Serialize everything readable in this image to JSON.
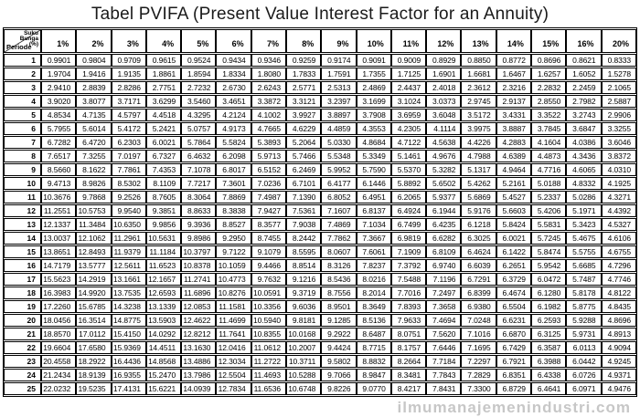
{
  "title": "Tabel PVIFA (Present Value Interest Factor for an Annuity)",
  "watermark": "ilmumanajemenindustri.com",
  "colors": {
    "border": "#000000",
    "text": "#000000",
    "watermark": "#c7c7c7",
    "background": "#ffffff"
  },
  "table": {
    "corner": {
      "top_label": "Suku\nBunga\n(%)",
      "bottom_label": "Periode"
    },
    "columns": [
      "1%",
      "2%",
      "3%",
      "4%",
      "5%",
      "6%",
      "7%",
      "8%",
      "9%",
      "10%",
      "11%",
      "12%",
      "13%",
      "14%",
      "15%",
      "16%",
      "20%"
    ],
    "rows": [
      {
        "period": "1",
        "values": [
          "0.9901",
          "0.9804",
          "0.9709",
          "0.9615",
          "0.9524",
          "0.9434",
          "0.9346",
          "0.9259",
          "0.9174",
          "0.9091",
          "0.9009",
          "0.8929",
          "0.8850",
          "0.8772",
          "0.8696",
          "0.8621",
          "0.8333"
        ]
      },
      {
        "period": "2",
        "values": [
          "1.9704",
          "1.9416",
          "1.9135",
          "1.8861",
          "1.8594",
          "1.8334",
          "1.8080",
          "1.7833",
          "1.7591",
          "1.7355",
          "1.7125",
          "1.6901",
          "1.6681",
          "1.6467",
          "1.6257",
          "1.6052",
          "1.5278"
        ]
      },
      {
        "period": "3",
        "values": [
          "2.9410",
          "2.8839",
          "2.8286",
          "2.7751",
          "2.7232",
          "2.6730",
          "2.6243",
          "2.5771",
          "2.5313",
          "2.4869",
          "2.4437",
          "2.4018",
          "2.3612",
          "2.3216",
          "2.2832",
          "2.2459",
          "2.1065"
        ]
      },
      {
        "period": "4",
        "values": [
          "3.9020",
          "3.8077",
          "3.7171",
          "3.6299",
          "3.5460",
          "3.4651",
          "3.3872",
          "3.3121",
          "3.2397",
          "3.1699",
          "3.1024",
          "3.0373",
          "2.9745",
          "2.9137",
          "2.8550",
          "2.7982",
          "2.5887"
        ]
      },
      {
        "period": "5",
        "values": [
          "4.8534",
          "4.7135",
          "4.5797",
          "4.4518",
          "4.3295",
          "4.2124",
          "4.1002",
          "3.9927",
          "3.8897",
          "3.7908",
          "3.6959",
          "3.6048",
          "3.5172",
          "3.4331",
          "3.3522",
          "3.2743",
          "2.9906"
        ]
      },
      {
        "period": "6",
        "values": [
          "5.7955",
          "5.6014",
          "5.4172",
          "5.2421",
          "5.0757",
          "4.9173",
          "4.7665",
          "4.6229",
          "4.4859",
          "4.3553",
          "4.2305",
          "4.1114",
          "3.9975",
          "3.8887",
          "3.7845",
          "3.6847",
          "3.3255"
        ]
      },
      {
        "period": "7",
        "values": [
          "6.7282",
          "6.4720",
          "6.2303",
          "6.0021",
          "5.7864",
          "5.5824",
          "5.3893",
          "5.2064",
          "5.0330",
          "4.8684",
          "4.7122",
          "4.5638",
          "4.4226",
          "4.2883",
          "4.1604",
          "4.0386",
          "3.6046"
        ]
      },
      {
        "period": "8",
        "values": [
          "7.6517",
          "7.3255",
          "7.0197",
          "6.7327",
          "6.4632",
          "6.2098",
          "5.9713",
          "5.7466",
          "5.5348",
          "5.3349",
          "5.1461",
          "4.9676",
          "4.7988",
          "4.6389",
          "4.4873",
          "4.3436",
          "3.8372"
        ]
      },
      {
        "period": "9",
        "values": [
          "8.5660",
          "8.1622",
          "7.7861",
          "7.4353",
          "7.1078",
          "6.8017",
          "6.5152",
          "6.2469",
          "5.9952",
          "5.7590",
          "5.5370",
          "5.3282",
          "5.1317",
          "4.9464",
          "4.7716",
          "4.6065",
          "4.0310"
        ]
      },
      {
        "period": "10",
        "values": [
          "9.4713",
          "8.9826",
          "8.5302",
          "8.1109",
          "7.7217",
          "7.3601",
          "7.0236",
          "6.7101",
          "6.4177",
          "6.1446",
          "5.8892",
          "5.6502",
          "5.4262",
          "5.2161",
          "5.0188",
          "4.8332",
          "4.1925"
        ]
      },
      {
        "period": "11",
        "values": [
          "10.3676",
          "9.7868",
          "9.2526",
          "8.7605",
          "8.3064",
          "7.8869",
          "7.4987",
          "7.1390",
          "6.8052",
          "6.4951",
          "6.2065",
          "5.9377",
          "5.6869",
          "5.4527",
          "5.2337",
          "5.0286",
          "4.3271"
        ]
      },
      {
        "period": "12",
        "values": [
          "11.2551",
          "10.5753",
          "9.9540",
          "9.3851",
          "8.8633",
          "8.3838",
          "7.9427",
          "7.5361",
          "7.1607",
          "6.8137",
          "6.4924",
          "6.1944",
          "5.9176",
          "5.6603",
          "5.4206",
          "5.1971",
          "4.4392"
        ]
      },
      {
        "period": "13",
        "values": [
          "12.1337",
          "11.3484",
          "10.6350",
          "9.9856",
          "9.3936",
          "8.8527",
          "8.3577",
          "7.9038",
          "7.4869",
          "7.1034",
          "6.7499",
          "6.4235",
          "6.1218",
          "5.8424",
          "5.5831",
          "5.3423",
          "4.5327"
        ]
      },
      {
        "period": "14",
        "values": [
          "13.0037",
          "12.1062",
          "11.2961",
          "10.5631",
          "9.8986",
          "9.2950",
          "8.7455",
          "8.2442",
          "7.7862",
          "7.3667",
          "6.9819",
          "6.6282",
          "6.3025",
          "6.0021",
          "5.7245",
          "5.4675",
          "4.6106"
        ]
      },
      {
        "period": "15",
        "values": [
          "13.8651",
          "12.8493",
          "11.9379",
          "11.1184",
          "10.3797",
          "9.7122",
          "9.1079",
          "8.5595",
          "8.0607",
          "7.6061",
          "7.1909",
          "6.8109",
          "6.4624",
          "6.1422",
          "5.8474",
          "5.5755",
          "4.6755"
        ]
      },
      {
        "period": "16",
        "values": [
          "14.7179",
          "13.5777",
          "12.5611",
          "11.6523",
          "10.8378",
          "10.1059",
          "9.4466",
          "8.8514",
          "8.3126",
          "7.8237",
          "7.3792",
          "6.9740",
          "6.6039",
          "6.2651",
          "5.9542",
          "5.6685",
          "4.7296"
        ]
      },
      {
        "period": "17",
        "values": [
          "15.5623",
          "14.2919",
          "13.1661",
          "12.1657",
          "11.2741",
          "10.4773",
          "9.7632",
          "9.1216",
          "8.5436",
          "8.0216",
          "7.5488",
          "7.1196",
          "6.7291",
          "6.3729",
          "6.0472",
          "5.7487",
          "4.7746"
        ]
      },
      {
        "period": "18",
        "values": [
          "16.3983",
          "14.9920",
          "13.7535",
          "12.6593",
          "11.6896",
          "10.8276",
          "10.0591",
          "9.3719",
          "8.7556",
          "8.2014",
          "7.7016",
          "7.2497",
          "6.8399",
          "6.4674",
          "6.1280",
          "5.8178",
          "4.8122"
        ]
      },
      {
        "period": "19",
        "values": [
          "17.2260",
          "15.6785",
          "14.3238",
          "13.1339",
          "12.0853",
          "11.1581",
          "10.3356",
          "9.6036",
          "8.9501",
          "8.3649",
          "7.8393",
          "7.3658",
          "6.9380",
          "6.5504",
          "6.1982",
          "5.8775",
          "4.8435"
        ]
      },
      {
        "period": "20",
        "values": [
          "18.0456",
          "16.3514",
          "14.8775",
          "13.5903",
          "12.4622",
          "11.4699",
          "10.5940",
          "9.8181",
          "9.1285",
          "8.5136",
          "7.9633",
          "7.4694",
          "7.0248",
          "6.6231",
          "6.2593",
          "5.9288",
          "4.8696"
        ]
      },
      {
        "period": "21",
        "values": [
          "18.8570",
          "17.0112",
          "15.4150",
          "14.0292",
          "12.8212",
          "11.7641",
          "10.8355",
          "10.0168",
          "9.2922",
          "8.6487",
          "8.0751",
          "7.5620",
          "7.1016",
          "6.6870",
          "6.3125",
          "5.9731",
          "4.8913"
        ]
      },
      {
        "period": "22",
        "values": [
          "19.6604",
          "17.6580",
          "15.9369",
          "14.4511",
          "13.1630",
          "12.0416",
          "11.0612",
          "10.2007",
          "9.4424",
          "8.7715",
          "8.1757",
          "7.6446",
          "7.1695",
          "6.7429",
          "6.3587",
          "6.0113",
          "4.9094"
        ]
      },
      {
        "period": "23",
        "values": [
          "20.4558",
          "18.2922",
          "16.4436",
          "14.8568",
          "13.4886",
          "12.3034",
          "11.2722",
          "10.3711",
          "9.5802",
          "8.8832",
          "8.2664",
          "7.7184",
          "7.2297",
          "6.7921",
          "6.3988",
          "6.0442",
          "4.9245"
        ]
      },
      {
        "period": "24",
        "values": [
          "21.2434",
          "18.9139",
          "16.9355",
          "15.2470",
          "13.7986",
          "12.5504",
          "11.4693",
          "10.5288",
          "9.7066",
          "8.9847",
          "8.3481",
          "7.7843",
          "7.2829",
          "6.8351",
          "6.4338",
          "6.0726",
          "4.9371"
        ]
      },
      {
        "period": "25",
        "values": [
          "22.0232",
          "19.5235",
          "17.4131",
          "15.6221",
          "14.0939",
          "12.7834",
          "11.6536",
          "10.6748",
          "9.8226",
          "9.0770",
          "8.4217",
          "7.8431",
          "7.3300",
          "6.8729",
          "6.4641",
          "6.0971",
          "4.9476"
        ]
      }
    ]
  }
}
